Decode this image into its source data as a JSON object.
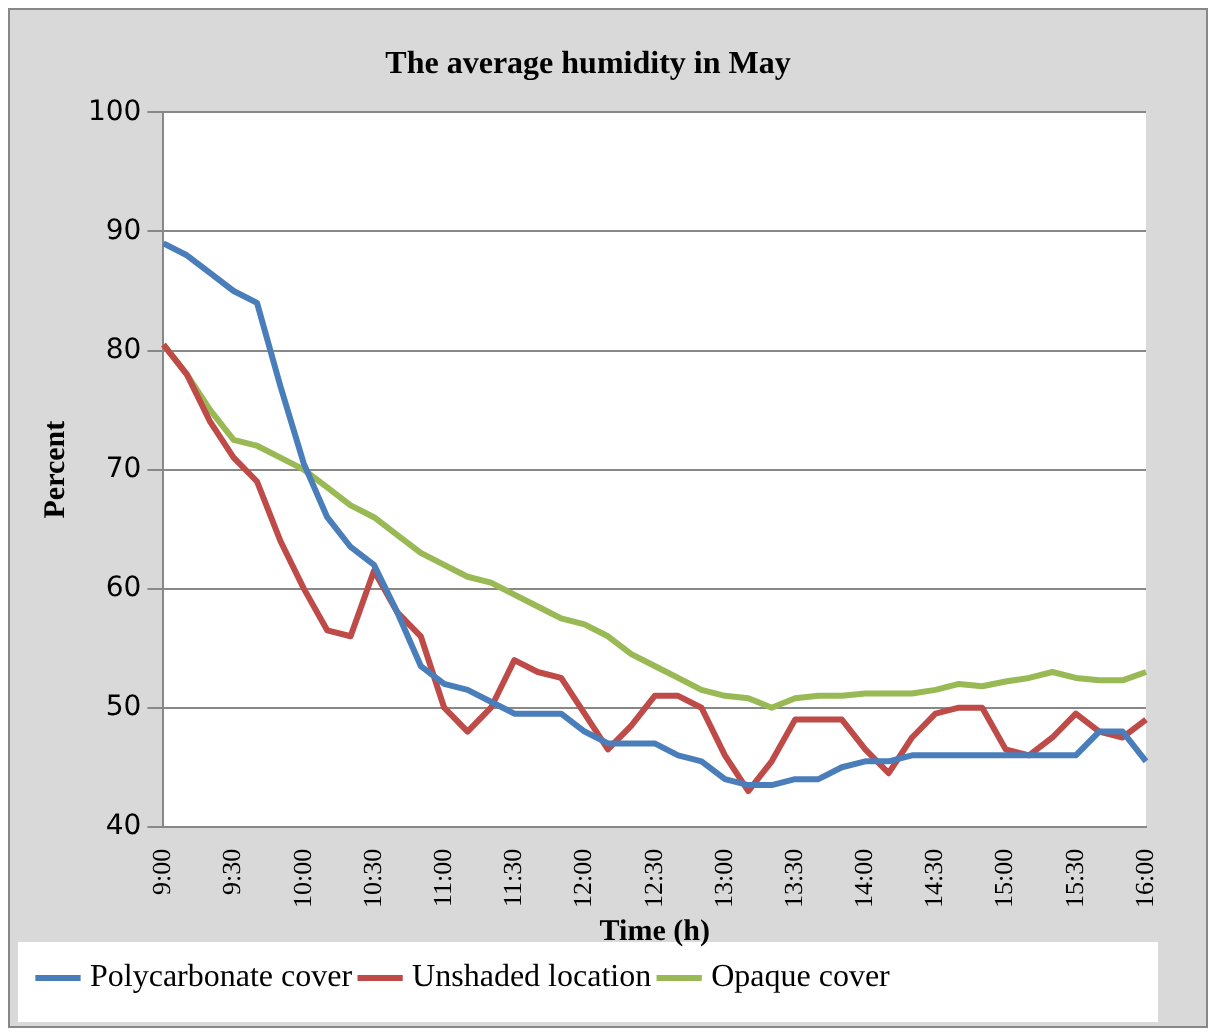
{
  "chart_data": {
    "type": "line",
    "title": "The average humidity in May",
    "xlabel": "Time (h)",
    "ylabel": "Percent",
    "categories": [
      "9:00",
      null,
      null,
      "9:30",
      null,
      null,
      "10:00",
      null,
      null,
      "10:30",
      null,
      null,
      "11:00",
      null,
      null,
      "11:30",
      null,
      null,
      "12:00",
      null,
      null,
      "12:30",
      null,
      null,
      "13:00",
      null,
      null,
      "13:30",
      null,
      null,
      "14:00",
      null,
      null,
      "14:30",
      null,
      null,
      "15:00",
      null,
      null,
      "15:30",
      null,
      null,
      "16:00"
    ],
    "series": [
      {
        "name": "Polycarbonate cover",
        "color": "#4a7ebb",
        "values": [
          89,
          88,
          86.5,
          85,
          84,
          77,
          70.5,
          66,
          63.5,
          62,
          58,
          53.5,
          52,
          51.5,
          50.5,
          49.5,
          49.5,
          49.5,
          48,
          47,
          47,
          47,
          46,
          45.5,
          44,
          43.5,
          43.5,
          44,
          44,
          45,
          45.5,
          45.5,
          46,
          46,
          46,
          46,
          46,
          46,
          46,
          46,
          48,
          48,
          45.5
        ]
      },
      {
        "name": "Unshaded location",
        "color": "#be4b48",
        "values": [
          80.5,
          78,
          74,
          71,
          69,
          64,
          60,
          56.5,
          56,
          61.5,
          58,
          56,
          50,
          48,
          50,
          54,
          53,
          52.5,
          49.5,
          46.5,
          48.5,
          51,
          51,
          50,
          46,
          43,
          45.5,
          49,
          49,
          49,
          46.5,
          44.5,
          47.5,
          49.5,
          50,
          50,
          46.5,
          46,
          47.5,
          49.5,
          48,
          47.5,
          49
        ]
      },
      {
        "name": "Opaque cover",
        "color": "#98b954",
        "values": [
          80.5,
          78,
          75,
          72.5,
          72,
          71,
          70,
          68.5,
          67,
          66,
          64.5,
          63,
          62,
          61,
          60.5,
          59.5,
          58.5,
          57.5,
          57,
          56,
          54.5,
          53.5,
          52.5,
          51.5,
          51,
          50.8,
          50,
          50.8,
          51,
          51,
          51.2,
          51.2,
          51.2,
          51.5,
          52,
          51.8,
          52.2,
          52.5,
          53,
          52.5,
          52.3,
          52.3,
          53
        ]
      }
    ],
    "ylim": [
      40,
      100
    ],
    "yticks": [
      40,
      50,
      60,
      70,
      80,
      90,
      100
    ],
    "grid": "y",
    "legend": "bottom",
    "marker": "none",
    "line_style": "solid"
  }
}
